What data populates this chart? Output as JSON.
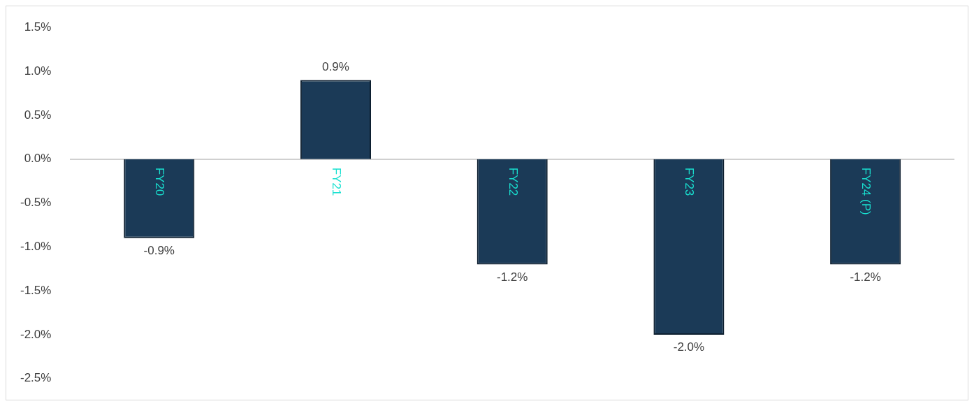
{
  "chart_data": {
    "type": "bar",
    "categories": [
      "FY20",
      "FY21",
      "FY22",
      "FY23",
      "FY24 (P)"
    ],
    "values": [
      -0.9,
      0.9,
      -1.2,
      -2.0,
      -1.2
    ],
    "value_labels": [
      "-0.9%",
      "0.9%",
      "-1.2%",
      "-2.0%",
      "-1.2%"
    ],
    "color": "#1b3a57",
    "ylim": [
      -2.5,
      1.5
    ],
    "yticks": [
      {
        "value": -2.5,
        "label": "-2.5%"
      },
      {
        "value": -2.0,
        "label": "-2.0%"
      },
      {
        "value": -1.5,
        "label": "-1.5%"
      },
      {
        "value": -1.0,
        "label": "-1.0%"
      },
      {
        "value": -0.5,
        "label": "-0.5%"
      },
      {
        "value": 0,
        "label": "0.0%"
      },
      {
        "value": 0.5,
        "label": "0.5%"
      },
      {
        "value": 1.0,
        "label": "1.0%"
      },
      {
        "value": 1.5,
        "label": "1.5%"
      }
    ]
  }
}
